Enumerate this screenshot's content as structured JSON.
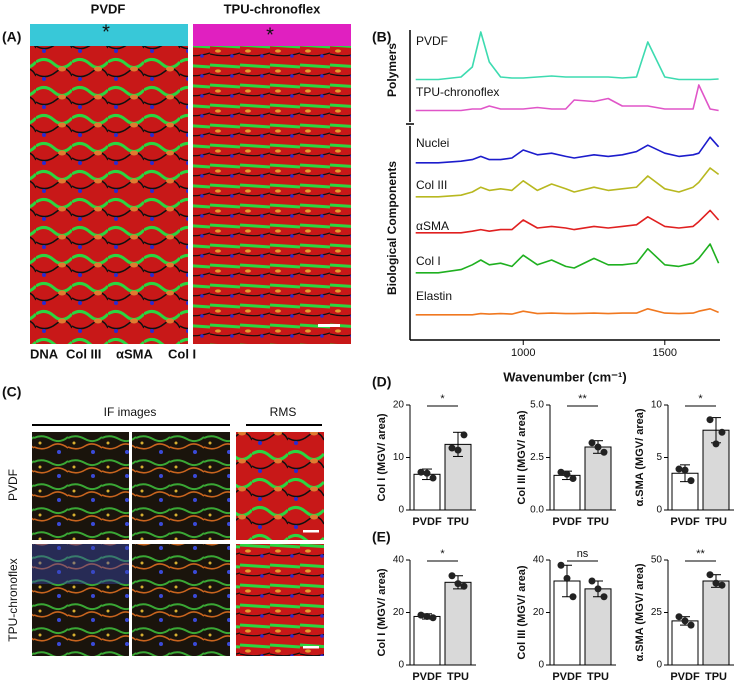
{
  "panel_a": {
    "label": "(A)",
    "titles": [
      "PVDF",
      "TPU-chronoflex"
    ],
    "legend": [
      {
        "text": "DNA",
        "color": "#3535e0"
      },
      {
        "text": "Col III",
        "color": "#e8b820"
      },
      {
        "text": "αSMA",
        "color": "#e02020"
      },
      {
        "text": "Col I",
        "color": "#1fa845"
      }
    ]
  },
  "panel_c": {
    "label": "(C)",
    "column_headers": [
      "IF images",
      "RMS"
    ],
    "row_labels": [
      "PVDF",
      "TPU-chronoflex"
    ]
  },
  "panel_labels": {
    "B": "(B)",
    "D": "(D)",
    "E": "(E)"
  },
  "chart_data": [
    {
      "type": "line",
      "xlabel": "Wavenumber (cm⁻¹)",
      "group_labels": [
        "Polymers",
        "Biological Components"
      ],
      "x": [
        620,
        700,
        780,
        820,
        850,
        880,
        920,
        960,
        1000,
        1050,
        1100,
        1150,
        1180,
        1250,
        1300,
        1350,
        1400,
        1440,
        1500,
        1550,
        1600,
        1620,
        1660,
        1690
      ],
      "xlim": [
        600,
        1695
      ],
      "xticks": [
        1000,
        1500
      ],
      "series": [
        {
          "name": "PVDF",
          "color": "#3ddbb0",
          "values": [
            0.05,
            0.05,
            0.1,
            0.3,
            1.0,
            0.4,
            0.1,
            0.08,
            0.08,
            0.1,
            0.12,
            0.1,
            0.1,
            0.1,
            0.1,
            0.08,
            0.1,
            0.8,
            0.1,
            0.05,
            0.05,
            0.05,
            0.05,
            0.06
          ]
        },
        {
          "name": "TPU-chronoflex",
          "color": "#e055c8",
          "values": [
            0.05,
            0.05,
            0.05,
            0.1,
            0.1,
            0.2,
            0.1,
            0.1,
            0.1,
            0.15,
            0.1,
            0.1,
            0.4,
            0.35,
            0.45,
            0.2,
            0.2,
            0.2,
            0.1,
            0.1,
            0.1,
            0.9,
            0.1,
            0.05
          ]
        },
        {
          "name": "Nuclei",
          "color": "#1c1ccc",
          "values": [
            0.1,
            0.1,
            0.15,
            0.2,
            0.3,
            0.2,
            0.2,
            0.25,
            0.5,
            0.35,
            0.4,
            0.3,
            0.25,
            0.35,
            0.3,
            0.35,
            0.45,
            0.65,
            0.4,
            0.3,
            0.35,
            0.4,
            0.9,
            0.6
          ]
        },
        {
          "name": "Col III",
          "color": "#b8b820",
          "values": [
            0.1,
            0.1,
            0.15,
            0.25,
            0.4,
            0.3,
            0.35,
            0.3,
            0.6,
            0.3,
            0.5,
            0.35,
            0.25,
            0.4,
            0.3,
            0.35,
            0.4,
            0.75,
            0.35,
            0.25,
            0.4,
            0.55,
            1.0,
            0.8
          ]
        },
        {
          "name": "αSMA",
          "color": "#e02020",
          "values": [
            0.1,
            0.1,
            0.1,
            0.15,
            0.2,
            0.15,
            0.2,
            0.2,
            0.5,
            0.25,
            0.3,
            0.25,
            0.2,
            0.3,
            0.25,
            0.3,
            0.35,
            0.6,
            0.3,
            0.25,
            0.3,
            0.45,
            0.8,
            0.5
          ]
        },
        {
          "name": "Col I",
          "color": "#1fb020",
          "values": [
            0.1,
            0.1,
            0.2,
            0.35,
            0.5,
            0.35,
            0.4,
            0.3,
            0.65,
            0.35,
            0.5,
            0.3,
            0.25,
            0.55,
            0.35,
            0.35,
            0.4,
            0.85,
            0.35,
            0.3,
            0.4,
            0.55,
            1.0,
            0.4
          ]
        },
        {
          "name": "Elastin",
          "color": "#f07820",
          "values": [
            0.05,
            0.05,
            0.05,
            0.05,
            0.1,
            0.08,
            0.1,
            0.08,
            0.2,
            0.1,
            0.12,
            0.1,
            0.1,
            0.12,
            0.1,
            0.12,
            0.12,
            0.3,
            0.12,
            0.1,
            0.12,
            0.2,
            0.3,
            0.15
          ]
        }
      ]
    },
    {
      "type": "bar",
      "ylabel": "Col I (MGV/ area)",
      "categories": [
        "PVDF",
        "TPU"
      ],
      "colors": [
        "#ffffff",
        "#d9d9d9"
      ],
      "values": [
        6.8,
        12.5
      ],
      "errors": [
        1.0,
        2.3
      ],
      "points": [
        [
          7.2,
          6.1,
          7.0
        ],
        [
          11.8,
          14.3,
          11.4
        ]
      ],
      "significance": "*",
      "ylim": [
        0,
        20
      ],
      "yticks": [
        0,
        10,
        20
      ]
    },
    {
      "type": "bar",
      "ylabel": "Col III (MGV/ area)",
      "categories": [
        "PVDF",
        "TPU"
      ],
      "colors": [
        "#ffffff",
        "#d9d9d9"
      ],
      "values": [
        1.65,
        3.0
      ],
      "errors": [
        0.2,
        0.3
      ],
      "points": [
        [
          1.8,
          1.5,
          1.7
        ],
        [
          3.2,
          2.75,
          3.0
        ]
      ],
      "significance": "**",
      "ylim": [
        0,
        5
      ],
      "yticks": [
        {
          "value": 0,
          "label": "0.0"
        },
        {
          "value": 2.5,
          "label": "2.5"
        },
        {
          "value": 5,
          "label": "5.0"
        }
      ]
    },
    {
      "type": "bar",
      "ylabel": "α.SMA (MGV/ area)",
      "categories": [
        "PVDF",
        "TPU"
      ],
      "colors": [
        "#ffffff",
        "#d9d9d9"
      ],
      "values": [
        3.5,
        7.6
      ],
      "errors": [
        0.8,
        1.2
      ],
      "points": [
        [
          3.9,
          2.8,
          3.8
        ],
        [
          8.6,
          7.4,
          6.3
        ]
      ],
      "significance": "*",
      "ylim": [
        0,
        10
      ],
      "yticks": [
        0,
        5,
        10
      ]
    },
    {
      "type": "bar",
      "ylabel": "Col I (MGV/ area)",
      "categories": [
        "PVDF",
        "TPU"
      ],
      "colors": [
        "#ffffff",
        "#d9d9d9"
      ],
      "values": [
        18.5,
        31.5
      ],
      "errors": [
        1.0,
        2.5
      ],
      "points": [
        [
          19,
          18,
          18.5
        ],
        [
          34,
          30,
          31
        ]
      ],
      "significance": "*",
      "ylim": [
        0,
        40
      ],
      "yticks": [
        0,
        20,
        40
      ]
    },
    {
      "type": "bar",
      "ylabel": "Col III (MGV/ area)",
      "categories": [
        "PVDF",
        "TPU"
      ],
      "colors": [
        "#ffffff",
        "#d9d9d9"
      ],
      "values": [
        32,
        29
      ],
      "errors": [
        6,
        3
      ],
      "points": [
        [
          38,
          26,
          33
        ],
        [
          32,
          26,
          29
        ]
      ],
      "significance": "ns",
      "ylim": [
        0,
        40
      ],
      "yticks": [
        0,
        20,
        40
      ]
    },
    {
      "type": "bar",
      "ylabel": "α.SMA (MGV/ area)",
      "categories": [
        "PVDF",
        "TPU"
      ],
      "colors": [
        "#ffffff",
        "#d9d9d9"
      ],
      "values": [
        21,
        40
      ],
      "errors": [
        2,
        3
      ],
      "points": [
        [
          23,
          19,
          21
        ],
        [
          43,
          38,
          39
        ]
      ],
      "significance": "**",
      "ylim": [
        0,
        50
      ],
      "yticks": [
        0,
        25,
        50
      ]
    }
  ]
}
